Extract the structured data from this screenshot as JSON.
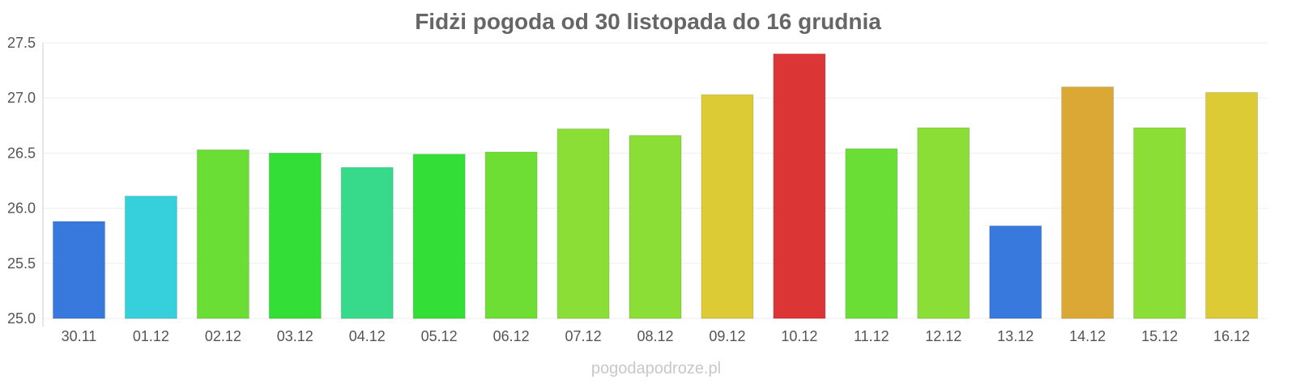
{
  "chart_data": {
    "type": "bar",
    "title": "Fidżi pogoda od 30 listopada do 16 grudnia",
    "xlabel": "",
    "ylabel": "",
    "ylim": [
      25.0,
      27.5
    ],
    "yticks": [
      "25.0",
      "25.5",
      "26.0",
      "26.5",
      "27.0",
      "27.5"
    ],
    "grid": true,
    "categories": [
      "30.11",
      "01.12",
      "02.12",
      "03.12",
      "04.12",
      "05.12",
      "06.12",
      "07.12",
      "08.12",
      "09.12",
      "10.12",
      "11.12",
      "12.12",
      "13.12",
      "14.12",
      "15.12",
      "16.12"
    ],
    "values": [
      25.88,
      26.11,
      26.53,
      26.5,
      26.37,
      26.49,
      26.51,
      26.72,
      26.66,
      27.03,
      27.4,
      26.54,
      26.73,
      25.84,
      27.1,
      26.73,
      27.05
    ],
    "colors": [
      "#3779dc",
      "#36cfdc",
      "#6ade35",
      "#33de37",
      "#36da8a",
      "#33de37",
      "#6ede35",
      "#8ade35",
      "#8ade35",
      "#dccb35",
      "#dc3535",
      "#6ade35",
      "#8ade35",
      "#3779dc",
      "#dca835",
      "#8ade35",
      "#dccb35"
    ]
  },
  "watermark": "pogodapodroze.pl"
}
